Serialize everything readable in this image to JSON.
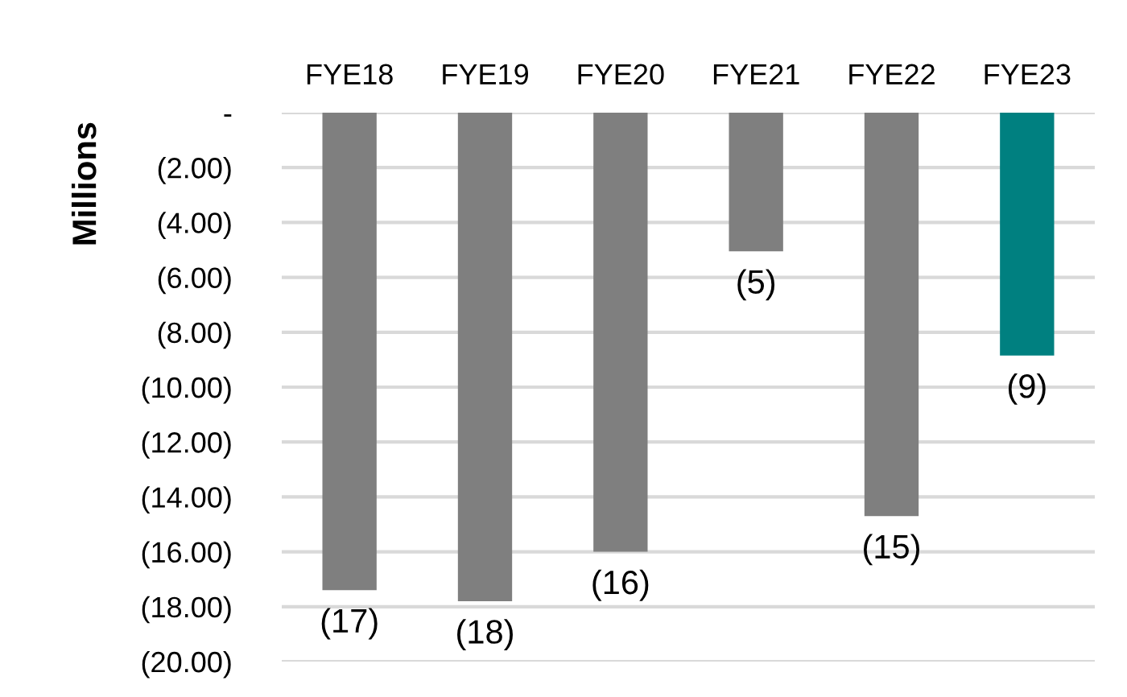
{
  "chart_data": {
    "type": "bar",
    "ylabel": "Millions",
    "categories": [
      "FYE18",
      "FYE19",
      "FYE20",
      "FYE21",
      "FYE22",
      "FYE23"
    ],
    "values": [
      -17.4,
      -17.8,
      -16.0,
      -5.05,
      -14.7,
      -8.85
    ],
    "colors": [
      "#7f7f7f",
      "#7f7f7f",
      "#7f7f7f",
      "#7f7f7f",
      "#7f7f7f",
      "#008080"
    ],
    "value_labels": [
      "(17)",
      "(18)",
      "(16)",
      "(5)",
      "(15)",
      "(9)"
    ],
    "ylim": [
      -20,
      0
    ],
    "yticks": [
      {
        "value": 0,
        "label": "-"
      },
      {
        "value": -2,
        "label": "(2.00)"
      },
      {
        "value": -4,
        "label": "(4.00)"
      },
      {
        "value": -6,
        "label": "(6.00)"
      },
      {
        "value": -8,
        "label": "(8.00)"
      },
      {
        "value": -10,
        "label": "(10.00)"
      },
      {
        "value": -12,
        "label": "(12.00)"
      },
      {
        "value": -14,
        "label": "(14.00)"
      },
      {
        "value": -16,
        "label": "(16.00)"
      },
      {
        "value": -18,
        "label": "(18.00)"
      },
      {
        "value": -20,
        "label": "(20.00)"
      }
    ],
    "grid": "y",
    "legend": false
  }
}
